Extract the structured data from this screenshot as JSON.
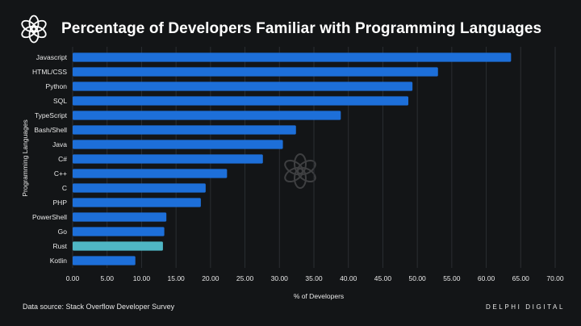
{
  "header": {
    "logo_icon": "delphi-flower-icon",
    "title": "Percentage of Developers Familiar with Programming Languages"
  },
  "footer": {
    "source": "Data source: Stack Overflow Developer Survey",
    "brand": "DELPHI DIGITAL"
  },
  "watermark_icon": "delphi-watermark-icon",
  "colors": {
    "background": "#131517",
    "bar": "#1d6fd9",
    "highlight_bar": "#4fb6c4",
    "grid": "#2b2e33"
  },
  "chart_data": {
    "type": "bar",
    "orientation": "horizontal",
    "categories": [
      "Javascript",
      "HTML/CSS",
      "Python",
      "SQL",
      "TypeScript",
      "Bash/Shell",
      "Java",
      "C#",
      "C++",
      "C",
      "PHP",
      "PowerShell",
      "Go",
      "Rust",
      "Kotlin"
    ],
    "values": [
      63.6,
      53.0,
      49.3,
      48.7,
      38.9,
      32.4,
      30.5,
      27.6,
      22.4,
      19.3,
      18.6,
      13.6,
      13.3,
      13.1,
      9.1
    ],
    "highlight": "Rust",
    "xlabel": "% of Developers",
    "ylabel": "Programming Languages",
    "xlim": [
      0,
      70
    ],
    "xticks": [
      "0.00",
      "5.00",
      "10.00",
      "15.00",
      "20.00",
      "25.00",
      "30.00",
      "35.00",
      "40.00",
      "45.00",
      "50.00",
      "55.00",
      "60.00",
      "65.00",
      "70.00"
    ],
    "grid": "vertical"
  }
}
